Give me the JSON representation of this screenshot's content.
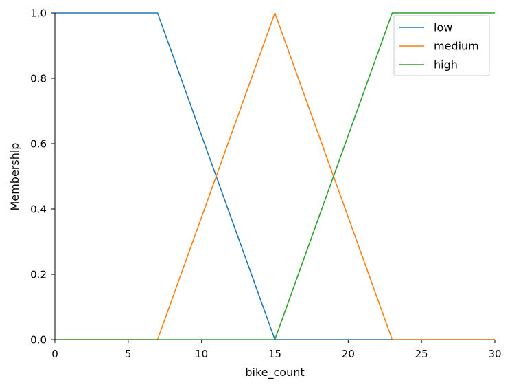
{
  "chart_data": {
    "type": "line",
    "xlabel": "bike_count",
    "ylabel": "Membership",
    "xlim": [
      0,
      30
    ],
    "ylim": [
      0,
      1
    ],
    "xticks": [
      0,
      5,
      10,
      15,
      20,
      25,
      30
    ],
    "yticks": [
      0.0,
      0.2,
      0.4,
      0.6,
      0.8,
      1.0
    ],
    "ytick_labels": [
      "0.0",
      "0.2",
      "0.4",
      "0.6",
      "0.8",
      "1.0"
    ],
    "grid": false,
    "legend_position": "top-right",
    "series": [
      {
        "name": "low",
        "color": "#1f77b4",
        "x": [
          0,
          7,
          15,
          30
        ],
        "y": [
          1,
          1,
          0,
          0
        ]
      },
      {
        "name": "medium",
        "color": "#ff7f0e",
        "x": [
          0,
          7,
          15,
          23,
          30
        ],
        "y": [
          0,
          0,
          1,
          0,
          0
        ]
      },
      {
        "name": "high",
        "color": "#2ca02c",
        "x": [
          0,
          15,
          23,
          30
        ],
        "y": [
          0,
          0,
          1,
          1
        ]
      }
    ]
  }
}
